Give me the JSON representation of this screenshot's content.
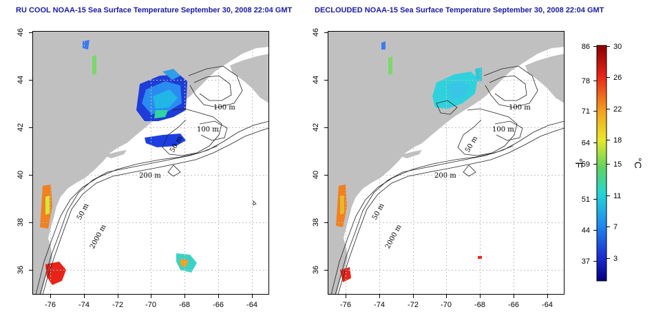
{
  "titles": {
    "left": "RU COOL NOAA-15 Sea Surface Temperature September 30, 2008 22:04 GMT",
    "right": "DECLOUDED NOAA-15 Sea Surface Temperature September 30, 2008 22:04 GMT"
  },
  "map_axes": {
    "lon_ticks": [
      "-76",
      "-74",
      "-72",
      "-70",
      "-68",
      "-66",
      "-64"
    ],
    "lat_ticks": [
      "36",
      "38",
      "40",
      "42",
      "44",
      "46"
    ]
  },
  "left_contour_labels": [
    "100 m",
    "100 m",
    "50 m",
    "200 m",
    "50 m",
    "2000 m"
  ],
  "right_contour_labels": [
    "100 m",
    "100 m",
    "50 m",
    "200 m",
    "50 m",
    "2000 m"
  ],
  "colorbar": {
    "fahrenheit_ticks": [
      "86",
      "78",
      "71",
      "64",
      "59",
      "51",
      "44",
      "37"
    ],
    "celsius_ticks": [
      "30",
      "26",
      "22",
      "18",
      "15",
      "11",
      "7",
      "3"
    ],
    "fahrenheit_unit": "°F",
    "celsius_unit": "°C",
    "colors": [
      "#8b0000",
      "#e8241a",
      "#f4a11e",
      "#e8e82a",
      "#5fd35f",
      "#22d6d6",
      "#1e8cf0",
      "#1c2cd0",
      "#000080"
    ]
  },
  "colors": {
    "land": "#c0c0c0",
    "ocean": "#ffffff",
    "title": "#1a1aa6",
    "grid": "#bfbfbf"
  }
}
